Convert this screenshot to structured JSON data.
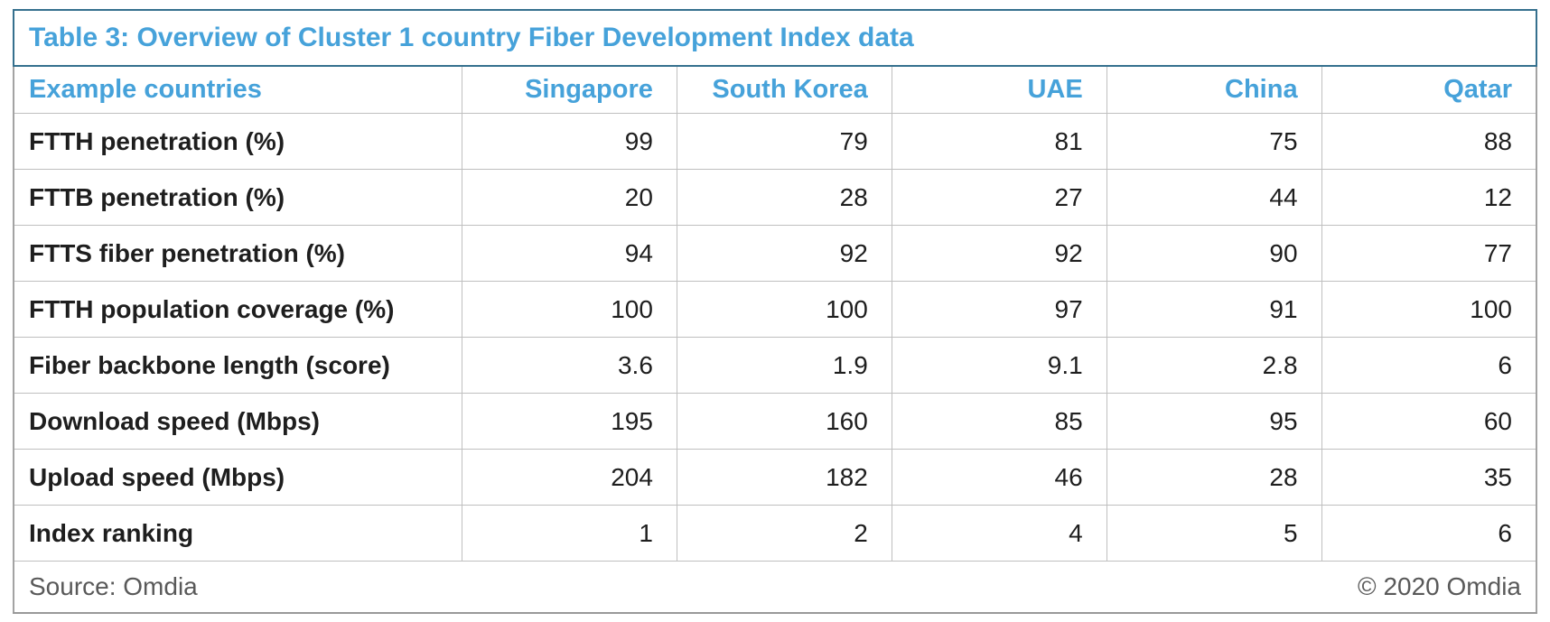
{
  "title": "Table 3: Overview of Cluster 1 country Fiber Development Index data",
  "footer": {
    "source": "Source: Omdia",
    "copyright": "© 2020 Omdia"
  },
  "colors": {
    "accent_blue_text": "#46A2DA",
    "title_box_border": "#35708E",
    "grid_line": "#BFBFBF",
    "outer_border": "#A3A3A3",
    "bottom_border": "#999999",
    "body_text": "#1E1E1E",
    "footer_text": "#595959"
  },
  "chart_data": {
    "type": "table",
    "title": "Table 3: Overview of Cluster 1 country Fiber Development Index data",
    "columns": [
      "Example countries",
      "Singapore",
      "South Korea",
      "UAE",
      "China",
      "Qatar"
    ],
    "rows": [
      {
        "label": "FTTH penetration (%)",
        "values": [
          99,
          79,
          81,
          75,
          88
        ]
      },
      {
        "label": "FTTB penetration (%)",
        "values": [
          20,
          28,
          27,
          44,
          12
        ]
      },
      {
        "label": "FTTS fiber penetration (%)",
        "values": [
          94,
          92,
          92,
          90,
          77
        ]
      },
      {
        "label": "FTTH population coverage (%)",
        "values": [
          100,
          100,
          97,
          91,
          100
        ]
      },
      {
        "label": "Fiber backbone length (score)",
        "values": [
          3.6,
          1.9,
          9.1,
          2.8,
          6
        ]
      },
      {
        "label": "Download speed (Mbps)",
        "values": [
          195,
          160,
          85,
          95,
          60
        ]
      },
      {
        "label": "Upload speed (Mbps)",
        "values": [
          204,
          182,
          46,
          28,
          35
        ]
      },
      {
        "label": "Index ranking",
        "values": [
          1,
          2,
          4,
          5,
          6
        ]
      }
    ],
    "source": "Source: Omdia",
    "copyright": "© 2020 Omdia"
  }
}
